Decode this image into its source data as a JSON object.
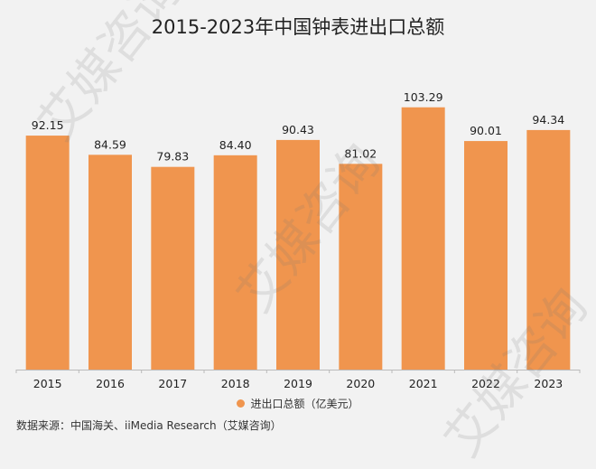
{
  "chart_data": {
    "type": "bar",
    "title": "2015-2023年中国钟表进出口总额",
    "categories": [
      "2015",
      "2016",
      "2017",
      "2018",
      "2019",
      "2020",
      "2021",
      "2022",
      "2023"
    ],
    "series": [
      {
        "name": "进出口总额（亿美元）",
        "values": [
          92.15,
          84.59,
          79.83,
          84.4,
          90.43,
          81.02,
          103.29,
          90.01,
          94.34
        ]
      }
    ],
    "data_labels": [
      "92.15",
      "84.59",
      "79.83",
      "84.40",
      "90.43",
      "81.02",
      "103.29",
      "90.01",
      "94.34"
    ],
    "ylim": [
      0,
      110
    ],
    "grid": false,
    "legend_position": "bottom",
    "bar_color": "#f0954e"
  },
  "source_note": "数据来源：中国海关、iiMedia Research（艾媒咨询）",
  "watermark": "艾媒咨询"
}
